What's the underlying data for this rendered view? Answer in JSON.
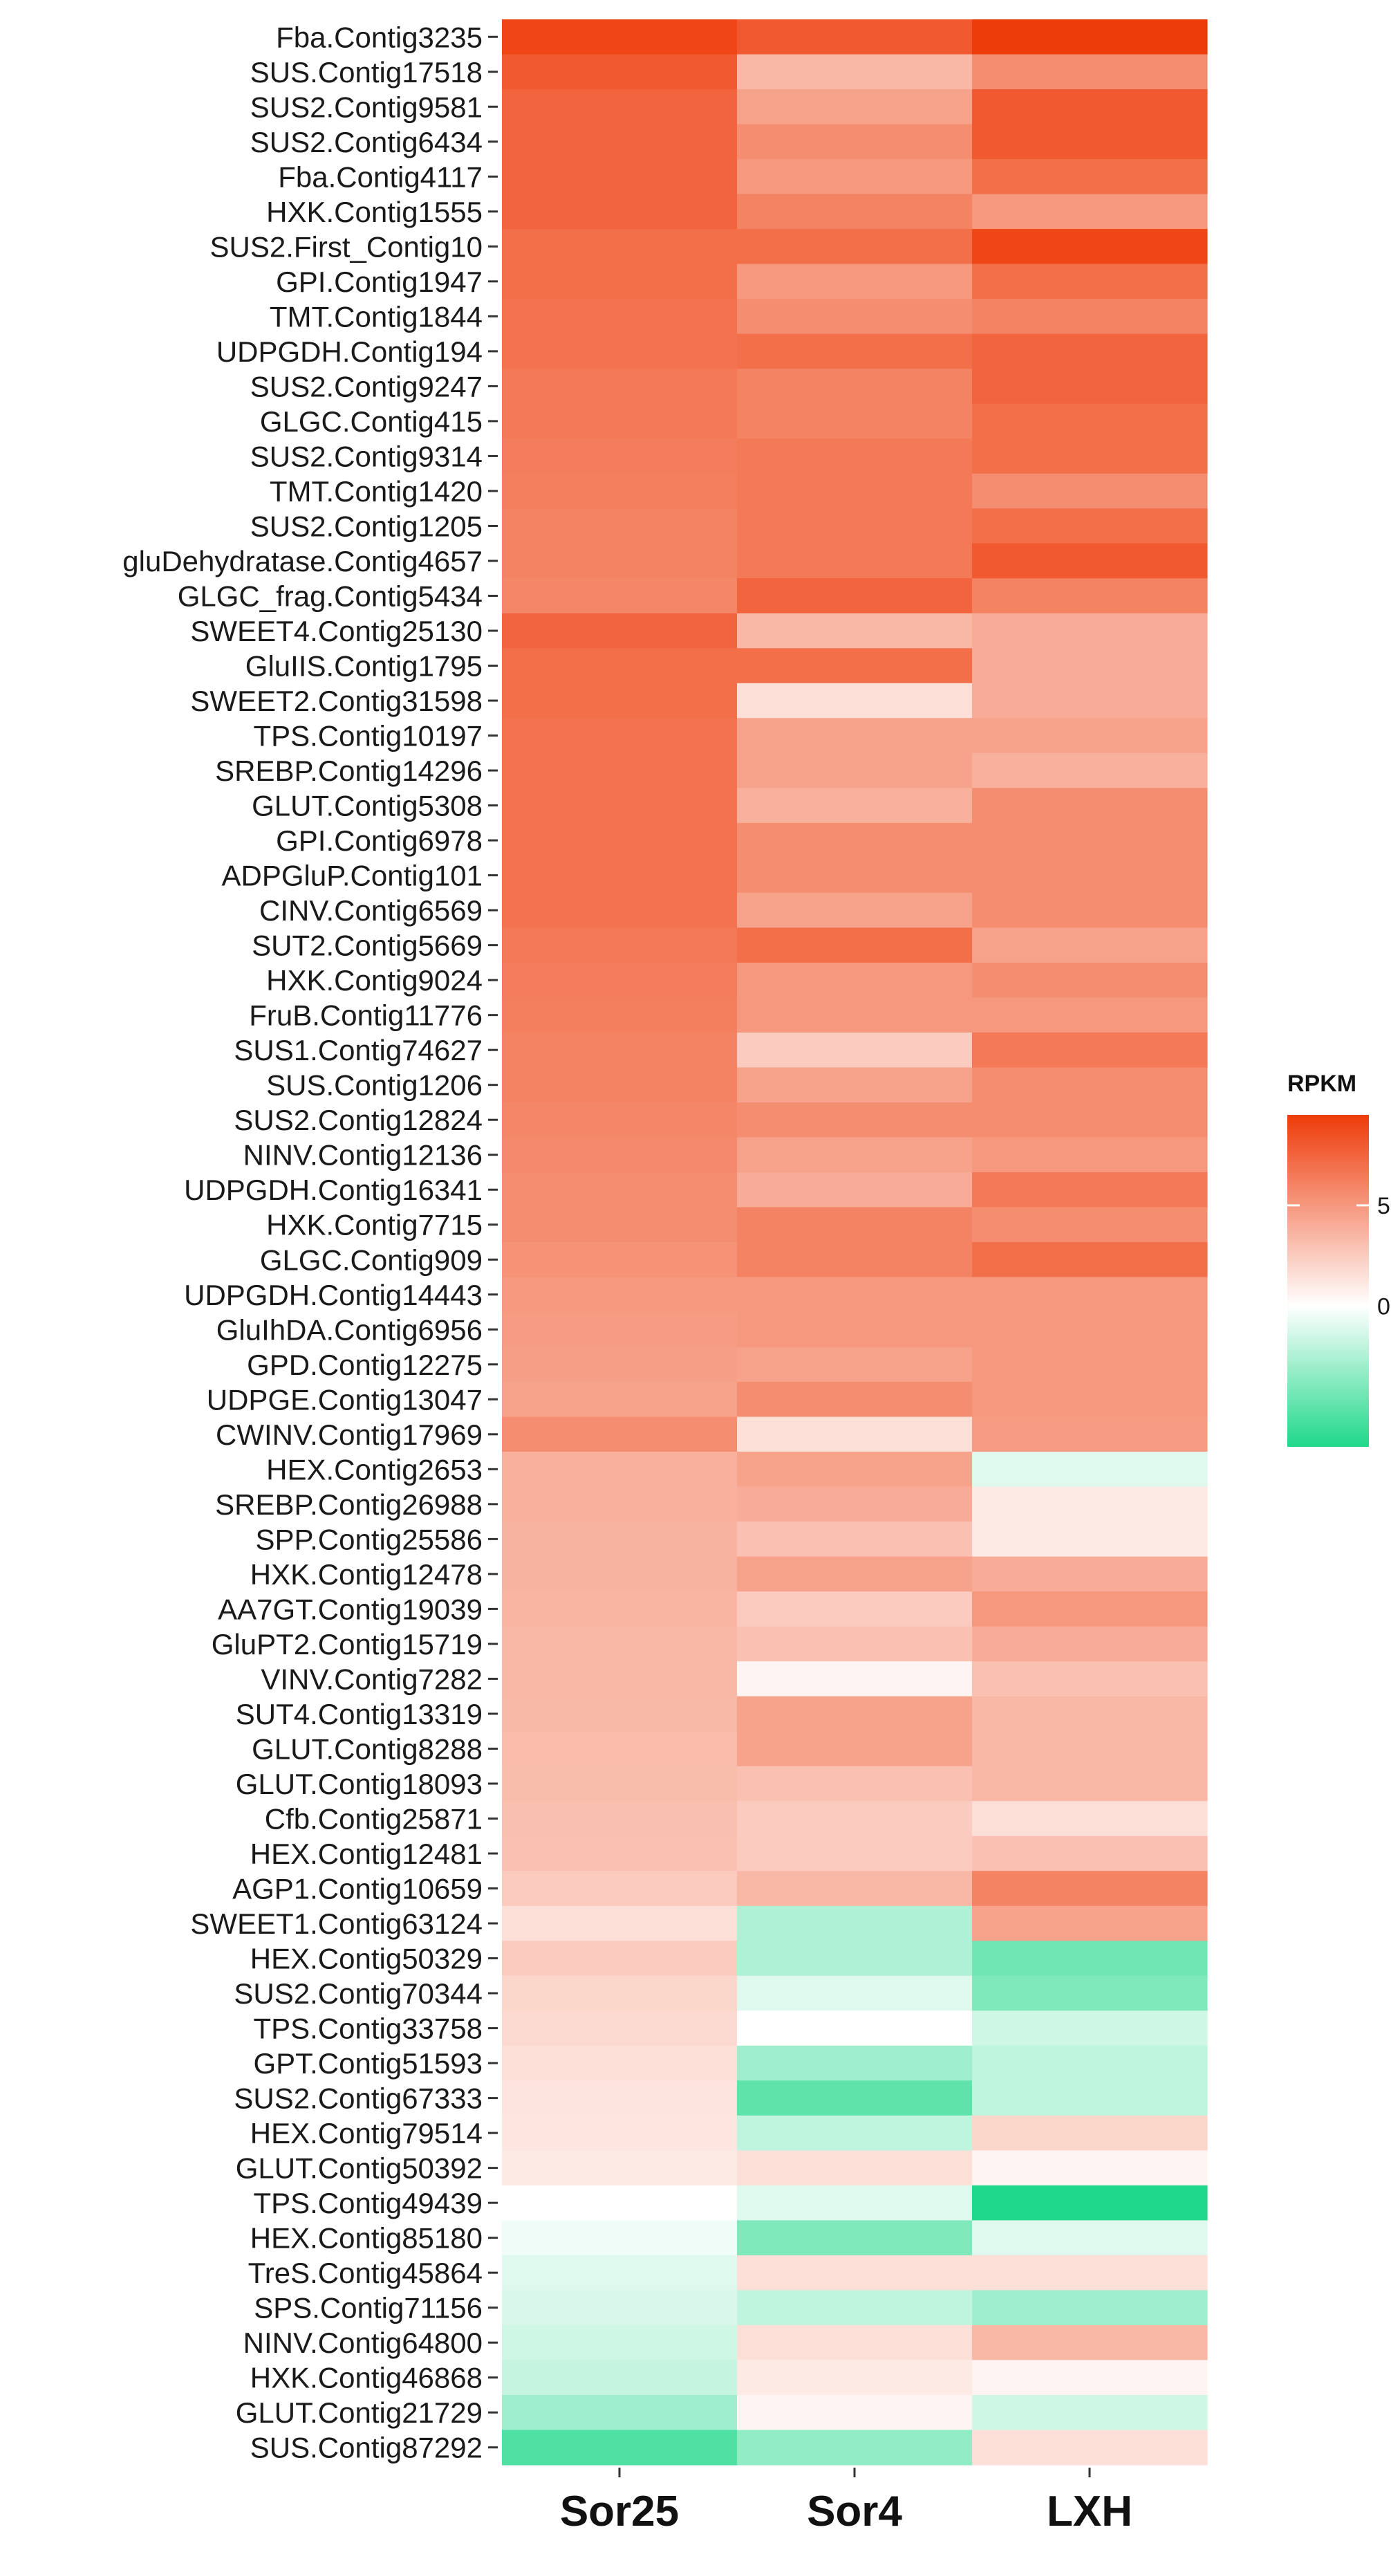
{
  "chart_data": {
    "type": "heatmap",
    "title": "",
    "xlabel": "",
    "ylabel": "",
    "columns": [
      "Sor25",
      "Sor4",
      "LXH"
    ],
    "rows": [
      "Fba.Contig3235",
      "SUS.Contig17518",
      "SUS2.Contig9581",
      "SUS2.Contig6434",
      "Fba.Contig4117",
      "HXK.Contig1555",
      "SUS2.First_Contig10",
      "GPI.Contig1947",
      "TMT.Contig1844",
      "UDPGDH.Contig194",
      "SUS2.Contig9247",
      "GLGC.Contig415",
      "SUS2.Contig9314",
      "TMT.Contig1420",
      "SUS2.Contig1205",
      "gluDehydratase.Contig4657",
      "GLGC_frag.Contig5434",
      "SWEET4.Contig25130",
      "GluIIS.Contig1795",
      "SWEET2.Contig31598",
      "TPS.Contig10197",
      "SREBP.Contig14296",
      "GLUT.Contig5308",
      "GPI.Contig6978",
      "ADPGluP.Contig101",
      "CINV.Contig6569",
      "SUT2.Contig5669",
      "HXK.Contig9024",
      "FruB.Contig11776",
      "SUS1.Contig74627",
      "SUS.Contig1206",
      "SUS2.Contig12824",
      "NINV.Contig12136",
      "UDPGDH.Contig16341",
      "HXK.Contig7715",
      "GLGC.Contig909",
      "UDPGDH.Contig14443",
      "GluIhDA.Contig6956",
      "GPD.Contig12275",
      "UDPGE.Contig13047",
      "CWINV.Contig17969",
      "HEX.Contig2653",
      "SREBP.Contig26988",
      "SPP.Contig25586",
      "HXK.Contig12478",
      "AA7GT.Contig19039",
      "GluPT2.Contig15719",
      "VINV.Contig7282",
      "SUT4.Contig13319",
      "GLUT.Contig8288",
      "GLUT.Contig18093",
      "Cfb.Contig25871",
      "HEX.Contig12481",
      "AGP1.Contig10659",
      "SWEET1.Contig63124",
      "HEX.Contig50329",
      "SUS2.Contig70344",
      "TPS.Contig33758",
      "GPT.Contig51593",
      "SUS2.Contig67333",
      "HEX.Contig79514",
      "GLUT.Contig50392",
      "TPS.Contig49439",
      "HEX.Contig85180",
      "TreS.Contig45864",
      "SPS.Contig71156",
      "NINV.Contig64800",
      "HXK.Contig46868",
      "GLUT.Contig21729",
      "SUS.Contig87292"
    ],
    "values": [
      [
        9.0,
        8.0,
        9.5
      ],
      [
        8.0,
        3.5,
        5.5
      ],
      [
        7.5,
        4.5,
        8.0
      ],
      [
        7.5,
        5.5,
        8.0
      ],
      [
        7.5,
        5.0,
        7.0
      ],
      [
        7.5,
        6.0,
        5.0
      ],
      [
        7.0,
        7.0,
        9.0
      ],
      [
        7.0,
        5.0,
        7.0
      ],
      [
        6.8,
        5.5,
        6.0
      ],
      [
        6.8,
        7.0,
        7.5
      ],
      [
        6.5,
        6.0,
        7.5
      ],
      [
        6.5,
        6.0,
        7.0
      ],
      [
        6.3,
        6.5,
        7.0
      ],
      [
        6.2,
        6.5,
        5.5
      ],
      [
        6.0,
        6.5,
        7.0
      ],
      [
        6.0,
        6.5,
        8.0
      ],
      [
        5.8,
        7.5,
        6.0
      ],
      [
        7.5,
        3.5,
        4.0
      ],
      [
        7.0,
        7.0,
        4.0
      ],
      [
        7.0,
        1.5,
        4.0
      ],
      [
        6.8,
        4.5,
        4.5
      ],
      [
        6.8,
        4.5,
        3.8
      ],
      [
        6.8,
        3.8,
        5.5
      ],
      [
        6.8,
        5.5,
        5.5
      ],
      [
        6.8,
        5.5,
        5.5
      ],
      [
        6.8,
        4.5,
        5.5
      ],
      [
        6.5,
        7.0,
        4.5
      ],
      [
        6.3,
        5.0,
        5.5
      ],
      [
        6.2,
        5.0,
        5.0
      ],
      [
        6.0,
        2.5,
        6.5
      ],
      [
        6.0,
        4.5,
        5.5
      ],
      [
        5.8,
        5.5,
        5.5
      ],
      [
        5.7,
        4.5,
        5.0
      ],
      [
        5.5,
        4.0,
        6.5
      ],
      [
        5.5,
        6.0,
        5.5
      ],
      [
        5.3,
        6.0,
        7.0
      ],
      [
        5.0,
        5.0,
        5.0
      ],
      [
        4.8,
        5.0,
        5.0
      ],
      [
        4.7,
        4.5,
        5.0
      ],
      [
        4.5,
        5.5,
        5.0
      ],
      [
        5.5,
        1.5,
        4.8
      ],
      [
        3.8,
        4.5,
        -1.0
      ],
      [
        3.8,
        4.0,
        1.0
      ],
      [
        3.7,
        3.0,
        1.0
      ],
      [
        3.7,
        4.5,
        4.0
      ],
      [
        3.6,
        2.5,
        5.0
      ],
      [
        3.5,
        3.0,
        4.0
      ],
      [
        3.5,
        0.5,
        3.0
      ],
      [
        3.4,
        4.5,
        3.5
      ],
      [
        3.3,
        4.5,
        3.5
      ],
      [
        3.2,
        3.0,
        3.5
      ],
      [
        3.1,
        2.5,
        1.5
      ],
      [
        3.0,
        2.5,
        3.0
      ],
      [
        2.5,
        3.5,
        6.0
      ],
      [
        1.5,
        -2.5,
        4.5
      ],
      [
        2.5,
        -2.5,
        -4.5
      ],
      [
        2.0,
        -1.0,
        -4.0
      ],
      [
        1.8,
        0.0,
        -1.5
      ],
      [
        1.5,
        -3.0,
        -2.0
      ],
      [
        1.3,
        -5.0,
        -2.0
      ],
      [
        1.2,
        -2.0,
        2.0
      ],
      [
        1.0,
        1.5,
        0.5
      ],
      [
        0.0,
        -1.0,
        -7.0
      ],
      [
        -0.5,
        -4.0,
        -1.0
      ],
      [
        -1.0,
        1.5,
        1.5
      ],
      [
        -1.2,
        -2.0,
        -3.0
      ],
      [
        -1.5,
        1.5,
        3.5
      ],
      [
        -1.8,
        1.0,
        0.5
      ],
      [
        -3.0,
        0.5,
        -1.5
      ],
      [
        -5.5,
        -3.5,
        1.5
      ]
    ],
    "legend": {
      "title": "RPKM",
      "ticks": [
        5,
        0
      ],
      "range": [
        -7.0,
        9.5
      ],
      "colors": {
        "low": "#1fd88a",
        "mid": "#ffffff",
        "high": "#ee3b0a"
      },
      "placement": "right"
    }
  }
}
